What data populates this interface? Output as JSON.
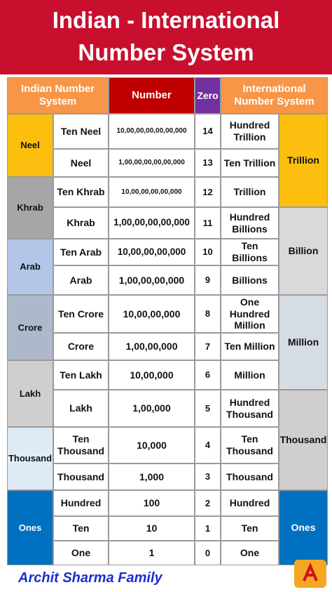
{
  "header": {
    "title": [
      "Indian - International",
      "Number System"
    ]
  },
  "table": {
    "columns": [
      "Indian Number System",
      "Number",
      "Zero",
      "International Number System"
    ],
    "indian_groups": [
      "Neel",
      "Khrab",
      "Arab",
      "Crore",
      "Lakh",
      "Thousand",
      "Ones"
    ],
    "international_groups": [
      "Trillion",
      "Billion",
      "Million",
      "Thousand",
      "Ones"
    ],
    "rows": [
      [
        "Ten Neel",
        "10,00,00,00,00,00,000",
        14,
        "Hundred Trillion"
      ],
      [
        "Neel",
        "1,00,00,00,00,00,000",
        13,
        "Ten Trillion"
      ],
      [
        "Ten Khrab",
        "10,00,00,00,00,000",
        12,
        "Trillion"
      ],
      [
        "Khrab",
        "1,00,00,00,00,000",
        11,
        "Hundred Billions"
      ],
      [
        "Ten Arab",
        "10,00,00,00,000",
        10,
        "Ten Billions"
      ],
      [
        "Arab",
        "1,00,00,00,000",
        9,
        "Billions"
      ],
      [
        "Ten Crore",
        "10,00,00,000",
        8,
        "One Hundred Million"
      ],
      [
        "Crore",
        "1,00,00,000",
        7,
        "Ten Million"
      ],
      [
        "Ten Lakh",
        "10,00,000",
        6,
        "Million"
      ],
      [
        "Lakh",
        "1,00,000",
        5,
        "Hundred Thousand"
      ],
      [
        "Ten Thousand",
        "10,000",
        4,
        "Ten Thousand"
      ],
      [
        "Thousand",
        "1,000",
        3,
        "Thousand"
      ],
      [
        "Hundred",
        "100",
        2,
        "Hundred"
      ],
      [
        "Ten",
        "10",
        1,
        "Ten"
      ],
      [
        "One",
        "1",
        0,
        "One"
      ]
    ]
  },
  "footer": {
    "brand": "Archit Sharma Family"
  }
}
